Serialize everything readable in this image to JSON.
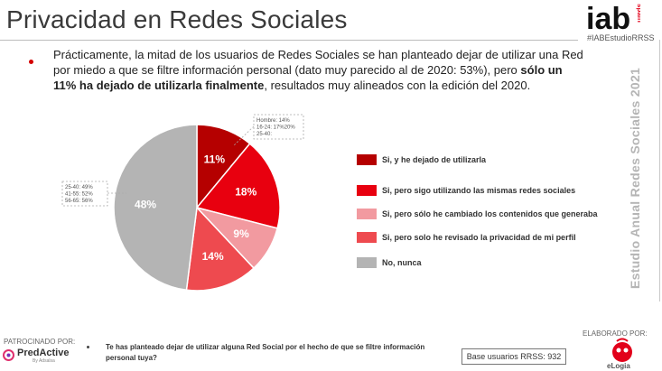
{
  "header": {
    "title": "Privacidad en Redes Sociales",
    "logo_text": "iab",
    "logo_sub": "spain",
    "hashtag": "#IABEstudioRRSS"
  },
  "intro": {
    "text_1": "Prácticamente, la mitad de los usuarios de Redes Sociales se han planteado dejar de utilizar una Red por miedo a que se filtre información personal (dato muy parecido al de 2020: 53%), pero ",
    "bold": "sólo un 11% ha dejado de utilizarla finalmente",
    "text_2": ", resultados muy alineados con la edición del 2020."
  },
  "side_title": "Estudio Anual Redes Sociales 2021",
  "chart_data": {
    "type": "pie",
    "title": "",
    "slices": [
      {
        "label": "Si, y he dejado de utilizarla",
        "value": 11,
        "display": "11%",
        "color": "#b50000"
      },
      {
        "label": "Si, pero sigo utilizando las mismas redes sociales",
        "value": 18,
        "display": "18%",
        "color": "#e8000f"
      },
      {
        "label": "Si, pero sólo he cambiado los contenidos que generaba",
        "value": 9,
        "display": "9%",
        "color": "#f29aa0"
      },
      {
        "label": "Si, pero solo he revisado la privacidad de mi perfil",
        "value": 14,
        "display": "14%",
        "color": "#ee4a4f"
      },
      {
        "label": "No, nunca",
        "value": 48,
        "display": "48%",
        "color": "#b4b4b4"
      }
    ],
    "annotations": [
      {
        "lines": [
          "Hombre: 14%",
          "16-24: 17%20%",
          "25-40:"
        ]
      },
      {
        "lines": [
          "25-40: 49%",
          "41-55: 52%",
          "56-65: 56%"
        ]
      }
    ],
    "legend_position": "right"
  },
  "footer": {
    "patrocinado": "PATROCINADO POR:",
    "sponsor": "PredActive",
    "sponsor_sub": "By Adsalsa",
    "question": "Te has planteado dejar de utilizar alguna Red Social por el hecho de que se filtre información personal tuya?",
    "base": "Base usuarios RRSS: 932",
    "elaborado": "ELABORADO POR:",
    "author": "eLogia"
  }
}
